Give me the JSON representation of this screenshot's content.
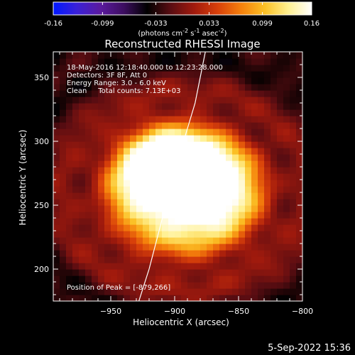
{
  "chart_data": {
    "type": "heatmap",
    "title": "Reconstructed RHESSI Image",
    "xlabel": "Heliocentric X (arcsec)",
    "ylabel": "Heliocentric Y (arcsec)",
    "xlim": [
      -995,
      -800
    ],
    "ylim": [
      175,
      370
    ],
    "x_ticks": [
      -950,
      -900,
      -850,
      -800
    ],
    "y_ticks": [
      200,
      250,
      300,
      350
    ],
    "colorbar": {
      "min": -0.16,
      "max": 0.16,
      "ticks": [
        "-0.16",
        "-0.099",
        "-0.033",
        "0.033",
        "0.099",
        "0.16"
      ],
      "label_parts": [
        "(photons cm",
        "-2",
        " s",
        "-1",
        " asec",
        "-2",
        ")"
      ],
      "colormap_stops": [
        "#0018ff",
        "#3a20d8",
        "#5a1a9e",
        "#3d0e60",
        "#000000",
        "#5a0d12",
        "#a11a0d",
        "#d8400a",
        "#f5800c",
        "#fbc025",
        "#fff090",
        "#ffffff"
      ]
    },
    "annotations": [
      "18-May-2016 12:18:40.000 to 12:23:28.000",
      "Detectors: 3F 8F, Att 0",
      "Energy Range: 3.0 - 6.0 keV",
      "Clean     Total counts: 7.13E+03"
    ],
    "peak_label": "Position of Peak = [-879,266]",
    "peak_position": [
      -879,
      266
    ],
    "limb_line": [
      [
        -928,
        175
      ],
      [
        -920,
        200
      ],
      [
        -907,
        250
      ],
      [
        -893,
        300
      ],
      [
        -884,
        330
      ],
      [
        -876,
        370
      ]
    ],
    "sources": [
      {
        "x": -908,
        "y": 278,
        "sigma_x": 22,
        "sigma_y": 20,
        "peak": 0.95
      },
      {
        "x": -879,
        "y": 266,
        "sigma_x": 20,
        "sigma_y": 19,
        "peak": 1.0
      },
      {
        "x": -892,
        "y": 257,
        "sigma_x": 40,
        "sigma_y": 34,
        "peak": 0.55
      }
    ],
    "plot_background": 0.18,
    "ripple_amplitude": 0.14
  },
  "timestamp": "5-Sep-2022 15:36"
}
